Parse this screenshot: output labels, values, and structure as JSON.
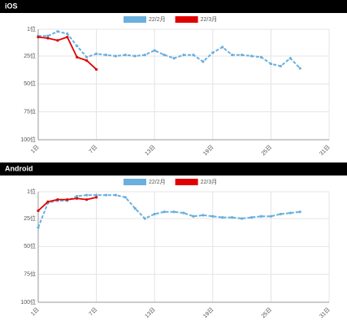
{
  "chart_data": [
    {
      "type": "line",
      "title": "iOS",
      "y_inverted": true,
      "grid": true,
      "xlim": [
        1,
        31
      ],
      "xticks": [
        {
          "value": 1,
          "label": "1日"
        },
        {
          "value": 7,
          "label": "7日"
        },
        {
          "value": 13,
          "label": "13日"
        },
        {
          "value": 19,
          "label": "19日"
        },
        {
          "value": 25,
          "label": "25日"
        },
        {
          "value": 31,
          "label": "31日"
        }
      ],
      "ylim": [
        1,
        100
      ],
      "yticks": [
        {
          "value": 1,
          "label": "1位"
        },
        {
          "value": 25,
          "label": "25位"
        },
        {
          "value": 50,
          "label": "50位"
        },
        {
          "value": 75,
          "label": "75位"
        },
        {
          "value": 100,
          "label": "100位"
        }
      ],
      "series": [
        {
          "name": "22/2月",
          "color": "#6ab0de",
          "dashed": true,
          "x": [
            1,
            2,
            3,
            4,
            5,
            6,
            7,
            8,
            9,
            10,
            11,
            12,
            13,
            14,
            15,
            16,
            17,
            18,
            19,
            20,
            21,
            22,
            23,
            24,
            25,
            26,
            27,
            28
          ],
          "values": [
            7,
            7,
            3,
            5,
            16,
            26,
            23,
            24,
            25,
            24,
            25,
            24,
            20,
            24,
            27,
            24,
            24,
            30,
            22,
            17,
            24,
            24,
            25,
            26,
            32,
            34,
            27,
            36
          ]
        },
        {
          "name": "22/3月",
          "color": "#e00000",
          "dashed": false,
          "x": [
            1,
            2,
            3,
            4,
            5,
            6,
            7
          ],
          "values": [
            8,
            9,
            11,
            8,
            26,
            29,
            37
          ]
        }
      ]
    },
    {
      "type": "line",
      "title": "Android",
      "y_inverted": true,
      "grid": true,
      "xlim": [
        1,
        31
      ],
      "xticks": [
        {
          "value": 1,
          "label": "1日"
        },
        {
          "value": 7,
          "label": "7日"
        },
        {
          "value": 13,
          "label": "13日"
        },
        {
          "value": 19,
          "label": "19日"
        },
        {
          "value": 25,
          "label": "25日"
        },
        {
          "value": 31,
          "label": "31日"
        }
      ],
      "ylim": [
        1,
        100
      ],
      "yticks": [
        {
          "value": 1,
          "label": "1位"
        },
        {
          "value": 25,
          "label": "25位"
        },
        {
          "value": 50,
          "label": "50位"
        },
        {
          "value": 75,
          "label": "75位"
        },
        {
          "value": 100,
          "label": "100位"
        }
      ],
      "series": [
        {
          "name": "22/2月",
          "color": "#6ab0de",
          "dashed": true,
          "x": [
            1,
            2,
            3,
            4,
            5,
            6,
            7,
            8,
            9,
            10,
            11,
            12,
            13,
            14,
            15,
            16,
            17,
            18,
            19,
            20,
            21,
            22,
            23,
            24,
            25,
            26,
            27,
            28
          ],
          "values": [
            33,
            11,
            9,
            9,
            5,
            4,
            4,
            4,
            4,
            6,
            16,
            25,
            21,
            19,
            19,
            20,
            23,
            22,
            23,
            24,
            24,
            25,
            24,
            23,
            23,
            21,
            20,
            19
          ]
        },
        {
          "name": "22/3月",
          "color": "#e00000",
          "dashed": false,
          "x": [
            1,
            2,
            3,
            4,
            5,
            6,
            7
          ],
          "values": [
            18,
            10,
            8,
            8,
            7,
            8,
            6
          ]
        }
      ]
    }
  ]
}
